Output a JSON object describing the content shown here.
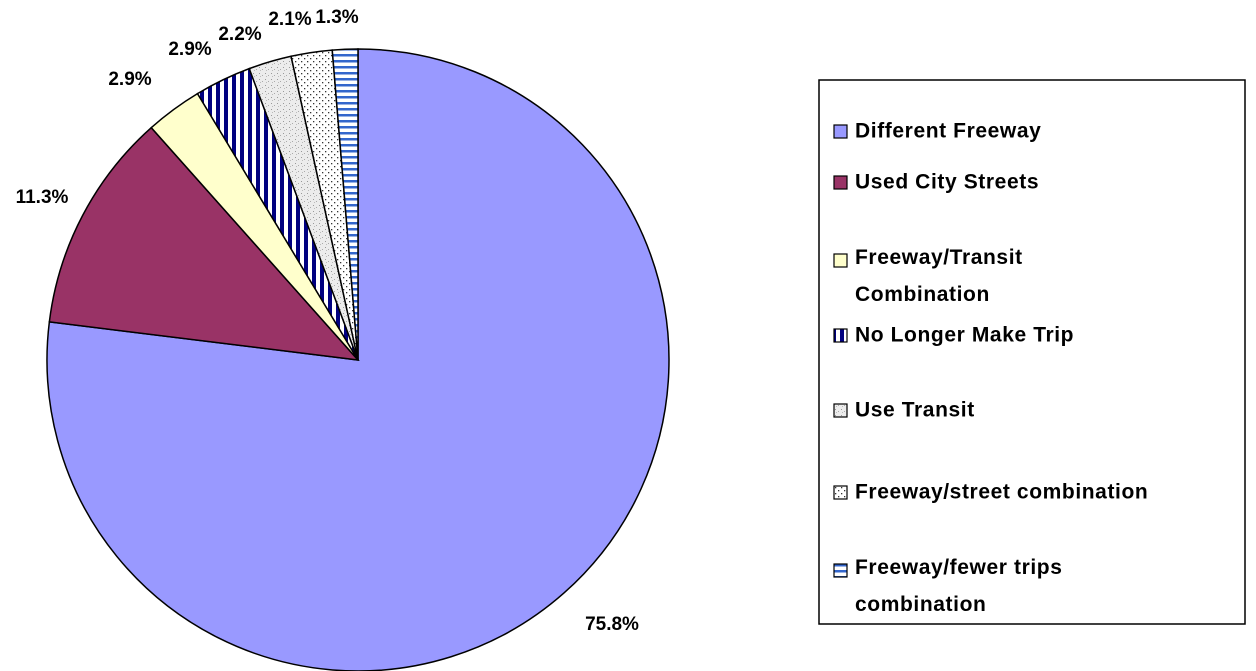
{
  "chart_data": {
    "type": "pie",
    "categories": [
      "Different Freeway",
      "Used City Streets",
      "Freeway/Transit Combination",
      "No Longer Make Trip",
      "Use Transit",
      "Freeway/street combination",
      "Freeway/fewer trips combination"
    ],
    "values": [
      75.8,
      11.3,
      2.9,
      2.9,
      2.2,
      2.1,
      1.3
    ],
    "value_labels": [
      "75.8%",
      "11.3%",
      "2.9%",
      "2.9%",
      "2.2%",
      "2.1%",
      "1.3%"
    ],
    "colors": [
      "#9999ff",
      "#993366",
      "#ffffcc",
      "#000080",
      "#c0c0c0",
      "#808080",
      "#3366cc"
    ],
    "patterns": [
      "solid",
      "solid",
      "solid",
      "vertical-stripes",
      "speckle",
      "dots",
      "horizontal-stripes"
    ],
    "legend": "right"
  }
}
